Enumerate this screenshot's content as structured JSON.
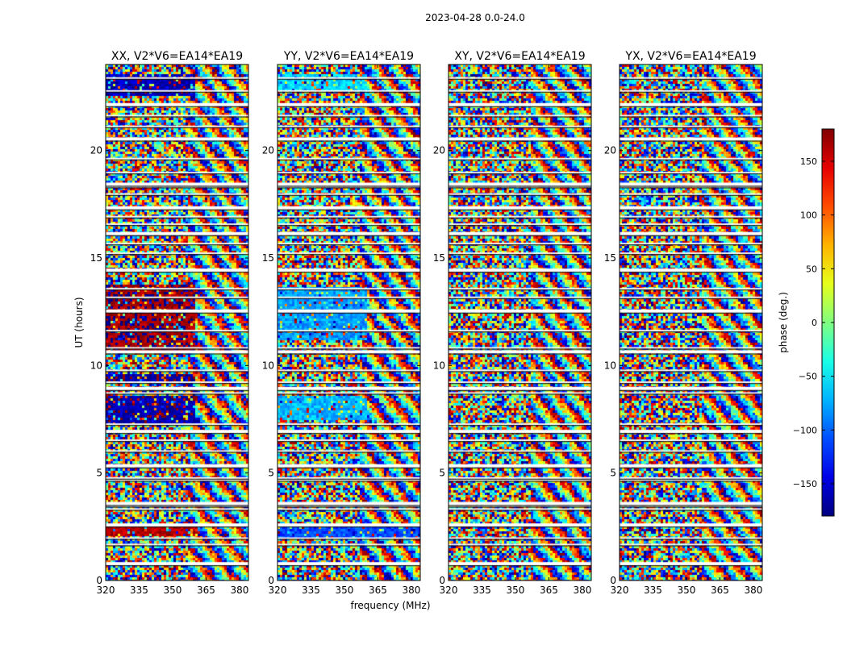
{
  "chart_data": {
    "type": "heatmap",
    "suptitle": "2023-04-28 0.0-24.0",
    "xlabel": "frequency (MHz)",
    "ylabel": "UT (hours)",
    "x_range": [
      320,
      384
    ],
    "x_ticks": [
      320,
      335,
      350,
      365,
      380
    ],
    "y_range": [
      0,
      24
    ],
    "y_ticks": [
      0,
      5,
      10,
      15,
      20
    ],
    "colorbar": {
      "label": "phase (deg.)",
      "range": [
        -180,
        180
      ],
      "ticks": [
        -150,
        -100,
        -50,
        0,
        50,
        100,
        150
      ],
      "tick_labels": [
        "−150",
        "−100",
        "−50",
        "0",
        "50",
        "100",
        "150"
      ],
      "colormap": "jet"
    },
    "panels": [
      {
        "title": "XX, V2*V6=EA14*EA19",
        "pol": "XX",
        "dominant_phase_regions": [
          {
            "ut_from": 2.1,
            "ut_to": 2.5,
            "phase": 160,
            "freq_to": 360
          },
          {
            "ut_from": 7.2,
            "ut_to": 8.6,
            "phase": -165,
            "freq_to": 360
          },
          {
            "ut_from": 9.3,
            "ut_to": 9.6,
            "phase": -170,
            "freq_to": 360
          },
          {
            "ut_from": 10.6,
            "ut_to": 13.8,
            "phase": 170,
            "freq_to": 360
          },
          {
            "ut_from": 22.5,
            "ut_to": 23.6,
            "phase": -160,
            "freq_to": 360
          }
        ]
      },
      {
        "title": "YY, V2*V6=EA14*EA19",
        "pol": "YY",
        "dominant_phase_regions": [
          {
            "ut_from": 2.0,
            "ut_to": 2.5,
            "phase": -110,
            "freq_to": 384
          },
          {
            "ut_from": 7.5,
            "ut_to": 8.6,
            "phase": -70,
            "freq_to": 360
          },
          {
            "ut_from": 11.2,
            "ut_to": 13.6,
            "phase": -80,
            "freq_to": 360
          },
          {
            "ut_from": 22.8,
            "ut_to": 23.5,
            "phase": -60,
            "freq_to": 360
          }
        ]
      },
      {
        "title": "XY, V2*V6=EA14*EA19",
        "pol": "XY",
        "dominant_phase_regions": []
      },
      {
        "title": "YX, V2*V6=EA14*EA19",
        "pol": "YX",
        "dominant_phase_regions": []
      }
    ],
    "flagged_ut_hours": [
      0.8,
      1.65,
      1.95,
      2.6,
      3.3,
      3.45,
      3.6,
      4.65,
      4.75,
      5.35,
      6.0,
      6.5,
      6.95,
      7.25,
      8.7,
      8.95,
      9.2,
      9.75,
      10.65,
      10.8,
      11.6,
      12.55,
      13.15,
      13.55,
      14.45,
      15.2,
      15.65,
      16.15,
      16.55,
      16.9,
      17.35,
      17.95,
      18.3,
      18.45,
      18.95,
      19.6,
      20.55,
      21.1,
      21.6,
      22.15,
      22.75,
      23.35
    ]
  }
}
